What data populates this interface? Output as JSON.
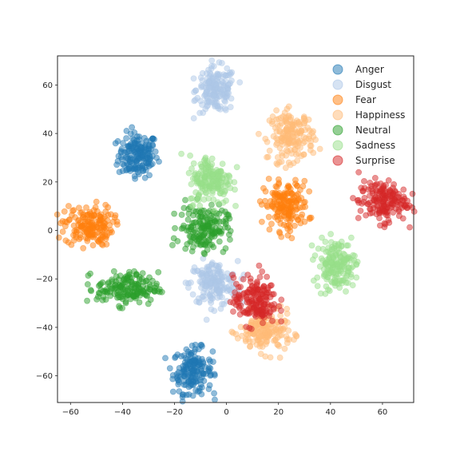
{
  "chart_data": {
    "type": "scatter",
    "title": "",
    "xlabel": "",
    "ylabel": "",
    "xlim": [
      -65,
      72
    ],
    "ylim": [
      -71,
      72
    ],
    "xticks": [
      -60,
      -40,
      -20,
      0,
      20,
      40,
      60
    ],
    "yticks": [
      -60,
      -40,
      -20,
      0,
      20,
      40,
      60
    ],
    "grid": false,
    "legend_position": "top-right",
    "series": [
      {
        "name": "Anger",
        "color": "#1f77b4",
        "clusters": [
          {
            "cx": -34,
            "cy": 31,
            "rx": 4.5,
            "ry": 5.5,
            "n": 170
          },
          {
            "cx": -13,
            "cy": -58,
            "rx": 4.5,
            "ry": 5.5,
            "n": 170
          }
        ]
      },
      {
        "name": "Disgust",
        "color": "#aec7e8",
        "clusters": [
          {
            "cx": -4,
            "cy": 58,
            "rx": 4.5,
            "ry": 5.5,
            "n": 170
          },
          {
            "cx": -5,
            "cy": -22,
            "rx": 5.5,
            "ry": 5.5,
            "n": 170
          }
        ]
      },
      {
        "name": "Fear",
        "color": "#ff7f0e",
        "clusters": [
          {
            "cx": -53,
            "cy": 2,
            "rx": 5.5,
            "ry": 5,
            "n": 170
          },
          {
            "cx": 23,
            "cy": 10,
            "rx": 5,
            "ry": 6,
            "n": 170
          }
        ]
      },
      {
        "name": "Happiness",
        "color": "#ffbb78",
        "clusters": [
          {
            "cx": 25,
            "cy": 39,
            "rx": 5,
            "ry": 6,
            "n": 170
          },
          {
            "cx": 15,
            "cy": -42,
            "rx": 6,
            "ry": 5,
            "n": 170
          }
        ]
      },
      {
        "name": "Neutral",
        "color": "#2ca02c",
        "clusters": [
          {
            "cx": -9,
            "cy": 1,
            "rx": 5.5,
            "ry": 5.5,
            "n": 170
          },
          {
            "cx": -38,
            "cy": -24,
            "rx": 7,
            "ry": 4,
            "n": 170
          }
        ]
      },
      {
        "name": "Sadness",
        "color": "#98df8a",
        "clusters": [
          {
            "cx": -6,
            "cy": 21,
            "rx": 5,
            "ry": 6,
            "n": 170
          },
          {
            "cx": 42,
            "cy": -14,
            "rx": 4.5,
            "ry": 6,
            "n": 170
          }
        ]
      },
      {
        "name": "Surprise",
        "color": "#d62728",
        "clusters": [
          {
            "cx": 60,
            "cy": 12,
            "rx": 5.5,
            "ry": 5,
            "n": 170
          },
          {
            "cx": 11,
            "cy": -29,
            "rx": 5,
            "ry": 6,
            "n": 170
          }
        ]
      }
    ]
  }
}
